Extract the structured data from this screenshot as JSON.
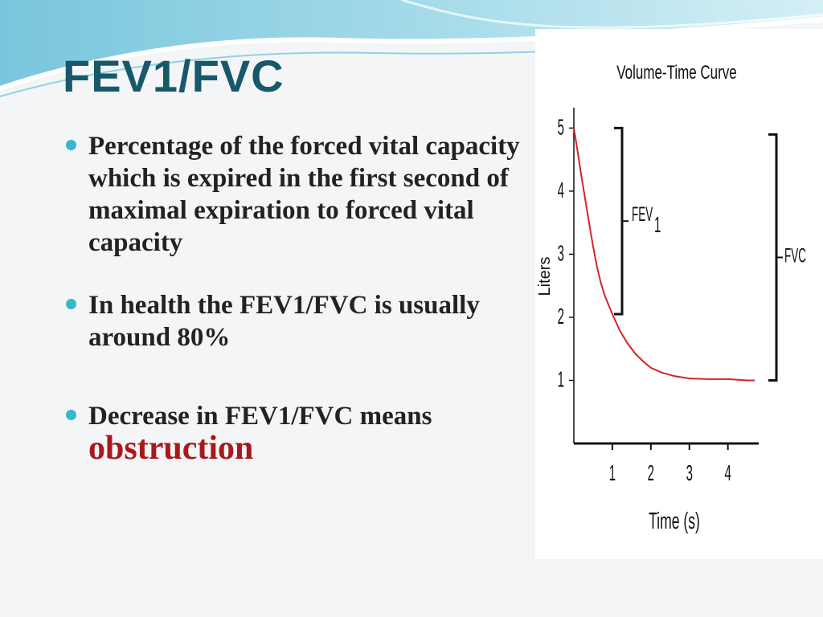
{
  "slide": {
    "title": "FEV1/FVC",
    "bullets": [
      {
        "text": "Percentage of the forced vital capacity which is expired in the first second of maximal expiration to forced vital capacity"
      },
      {
        "text": "In health the FEV1/FVC is usually around 80%"
      },
      {
        "text": "Decrease in FEV1/FVC  means",
        "emphasis": "obstruction"
      }
    ],
    "colors": {
      "title": "#17586a",
      "bullet_dot": "#35b7cf",
      "emphasis": "#a8181c",
      "curve": "#d32626"
    }
  },
  "chart_data": {
    "type": "line",
    "title": "Volume-Time Curve",
    "xlabel": "Time (s)",
    "ylabel": "Liters",
    "x_ticks": [
      "1",
      "2",
      "3",
      "4"
    ],
    "y_ticks": [
      "1",
      "2",
      "3",
      "4",
      "5"
    ],
    "xlim": [
      0,
      4.8
    ],
    "ylim": [
      0,
      5.4
    ],
    "series": [
      {
        "x": [
          0,
          0.1,
          0.2,
          0.3,
          0.4,
          0.5,
          0.6,
          0.7,
          0.8,
          0.9,
          1.0,
          1.2,
          1.4,
          1.6,
          1.8,
          2.0,
          2.3,
          2.6,
          3.0,
          3.5,
          4.0,
          4.5,
          4.7
        ],
        "y": [
          5.0,
          4.62,
          4.22,
          3.85,
          3.48,
          3.12,
          2.8,
          2.55,
          2.35,
          2.2,
          2.05,
          1.78,
          1.58,
          1.42,
          1.3,
          1.2,
          1.12,
          1.07,
          1.03,
          1.02,
          1.02,
          1.0,
          1.0
        ]
      }
    ],
    "annotations": [
      {
        "label": "FEV",
        "subscript": "1",
        "y_top": 5.0,
        "y_bottom": 2.05
      },
      {
        "label": "FVC",
        "y_top": 5.0,
        "y_bottom": 1.0
      }
    ],
    "grid": false
  }
}
